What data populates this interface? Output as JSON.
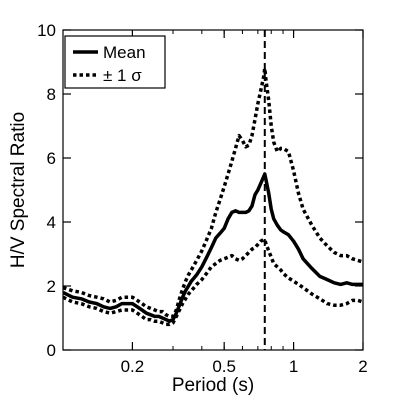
{
  "chart_data": {
    "type": "line",
    "xlabel": "Period (s)",
    "ylabel": "H/V Spectral Ratio",
    "xscale": "log",
    "xlim": [
      0.1,
      2
    ],
    "ylim": [
      0,
      10
    ],
    "x_ticks": [
      0.2,
      0.5,
      1,
      2
    ],
    "x_tick_labels": [
      "0.2",
      "0.5",
      "1",
      "2"
    ],
    "y_ticks": [
      0,
      2,
      4,
      6,
      8,
      10
    ],
    "y_tick_labels": [
      "0",
      "2",
      "4",
      "6",
      "8",
      "10"
    ],
    "grid": false,
    "legend_position": "top-left",
    "vertical_marker": {
      "x": 0.75,
      "style": "dashed"
    },
    "series": [
      {
        "name": "Mean",
        "style": "solid",
        "color": "#000000",
        "x": [
          0.1,
          0.11,
          0.12,
          0.13,
          0.14,
          0.15,
          0.16,
          0.17,
          0.18,
          0.19,
          0.2,
          0.21,
          0.22,
          0.23,
          0.24,
          0.25,
          0.26,
          0.27,
          0.28,
          0.29,
          0.3,
          0.31,
          0.32,
          0.33,
          0.34,
          0.35,
          0.36,
          0.37,
          0.38,
          0.4,
          0.42,
          0.44,
          0.46,
          0.48,
          0.5,
          0.52,
          0.54,
          0.56,
          0.58,
          0.6,
          0.62,
          0.64,
          0.66,
          0.68,
          0.7,
          0.72,
          0.74,
          0.75,
          0.76,
          0.78,
          0.8,
          0.82,
          0.85,
          0.88,
          0.9,
          0.95,
          1.0,
          1.05,
          1.1,
          1.2,
          1.3,
          1.4,
          1.5,
          1.6,
          1.7,
          1.8,
          1.9,
          2.0
        ],
        "values": [
          1.8,
          1.65,
          1.6,
          1.5,
          1.45,
          1.35,
          1.3,
          1.35,
          1.45,
          1.45,
          1.45,
          1.35,
          1.25,
          1.15,
          1.1,
          1.05,
          1.05,
          1.0,
          0.95,
          0.9,
          0.95,
          1.15,
          1.4,
          1.65,
          1.85,
          2.0,
          2.15,
          2.25,
          2.35,
          2.6,
          2.9,
          3.2,
          3.5,
          3.65,
          3.8,
          4.1,
          4.3,
          4.35,
          4.3,
          4.3,
          4.3,
          4.35,
          4.5,
          4.85,
          5.0,
          5.2,
          5.4,
          5.5,
          5.3,
          4.9,
          4.4,
          4.1,
          3.9,
          3.75,
          3.7,
          3.6,
          3.4,
          3.15,
          2.85,
          2.55,
          2.3,
          2.2,
          2.1,
          2.05,
          2.1,
          2.05,
          2.05,
          2.05
        ]
      },
      {
        "name": "± 1 σ",
        "style": "dotted",
        "color": "#000000",
        "x": [
          0.1,
          0.11,
          0.12,
          0.13,
          0.14,
          0.15,
          0.16,
          0.17,
          0.18,
          0.19,
          0.2,
          0.21,
          0.22,
          0.23,
          0.24,
          0.25,
          0.26,
          0.27,
          0.28,
          0.29,
          0.3,
          0.31,
          0.32,
          0.33,
          0.34,
          0.35,
          0.36,
          0.37,
          0.38,
          0.4,
          0.42,
          0.44,
          0.46,
          0.48,
          0.5,
          0.52,
          0.54,
          0.56,
          0.58,
          0.6,
          0.62,
          0.64,
          0.66,
          0.68,
          0.7,
          0.72,
          0.74,
          0.75,
          0.76,
          0.78,
          0.8,
          0.82,
          0.85,
          0.88,
          0.9,
          0.95,
          1.0,
          1.05,
          1.1,
          1.2,
          1.3,
          1.4,
          1.5,
          1.6,
          1.7,
          1.8,
          1.9,
          2.0
        ],
        "values": [
          1.95,
          1.85,
          1.8,
          1.7,
          1.65,
          1.6,
          1.5,
          1.55,
          1.65,
          1.65,
          1.65,
          1.55,
          1.45,
          1.35,
          1.3,
          1.25,
          1.2,
          1.2,
          1.1,
          1.05,
          1.05,
          1.25,
          1.6,
          1.9,
          2.15,
          2.35,
          2.5,
          2.65,
          2.8,
          3.1,
          3.45,
          3.8,
          4.3,
          4.7,
          5.1,
          5.5,
          5.9,
          6.3,
          6.7,
          6.55,
          6.35,
          6.4,
          6.7,
          7.2,
          7.7,
          8.1,
          8.5,
          8.8,
          8.4,
          7.8,
          7.0,
          6.5,
          6.2,
          6.3,
          6.3,
          6.2,
          5.6,
          4.9,
          4.4,
          3.9,
          3.5,
          3.25,
          3.05,
          2.95,
          2.95,
          2.85,
          2.8,
          2.75
        ]
      },
      {
        "style": "dotted",
        "color": "#000000",
        "x": [
          0.1,
          0.11,
          0.12,
          0.13,
          0.14,
          0.15,
          0.16,
          0.17,
          0.18,
          0.19,
          0.2,
          0.21,
          0.22,
          0.23,
          0.24,
          0.25,
          0.26,
          0.27,
          0.28,
          0.29,
          0.3,
          0.31,
          0.32,
          0.33,
          0.34,
          0.35,
          0.36,
          0.37,
          0.38,
          0.4,
          0.42,
          0.44,
          0.46,
          0.48,
          0.5,
          0.52,
          0.54,
          0.56,
          0.58,
          0.6,
          0.62,
          0.64,
          0.66,
          0.68,
          0.7,
          0.72,
          0.74,
          0.75,
          0.76,
          0.78,
          0.8,
          0.82,
          0.85,
          0.88,
          0.9,
          0.95,
          1.0,
          1.05,
          1.1,
          1.2,
          1.3,
          1.4,
          1.5,
          1.6,
          1.7,
          1.8,
          1.9,
          2.0
        ],
        "values": [
          1.65,
          1.5,
          1.45,
          1.35,
          1.3,
          1.2,
          1.15,
          1.2,
          1.25,
          1.25,
          1.25,
          1.15,
          1.05,
          0.95,
          0.95,
          0.9,
          0.9,
          0.85,
          0.8,
          0.8,
          0.85,
          1.05,
          1.25,
          1.45,
          1.6,
          1.75,
          1.85,
          1.95,
          2.05,
          2.2,
          2.4,
          2.6,
          2.7,
          2.8,
          2.85,
          2.9,
          2.95,
          2.85,
          2.8,
          2.85,
          2.95,
          3.05,
          3.15,
          3.2,
          3.3,
          3.4,
          3.45,
          3.45,
          3.3,
          3.1,
          2.9,
          2.7,
          2.6,
          2.5,
          2.4,
          2.25,
          2.15,
          2.05,
          1.95,
          1.75,
          1.6,
          1.45,
          1.4,
          1.4,
          1.45,
          1.55,
          1.55,
          1.5
        ]
      }
    ]
  }
}
